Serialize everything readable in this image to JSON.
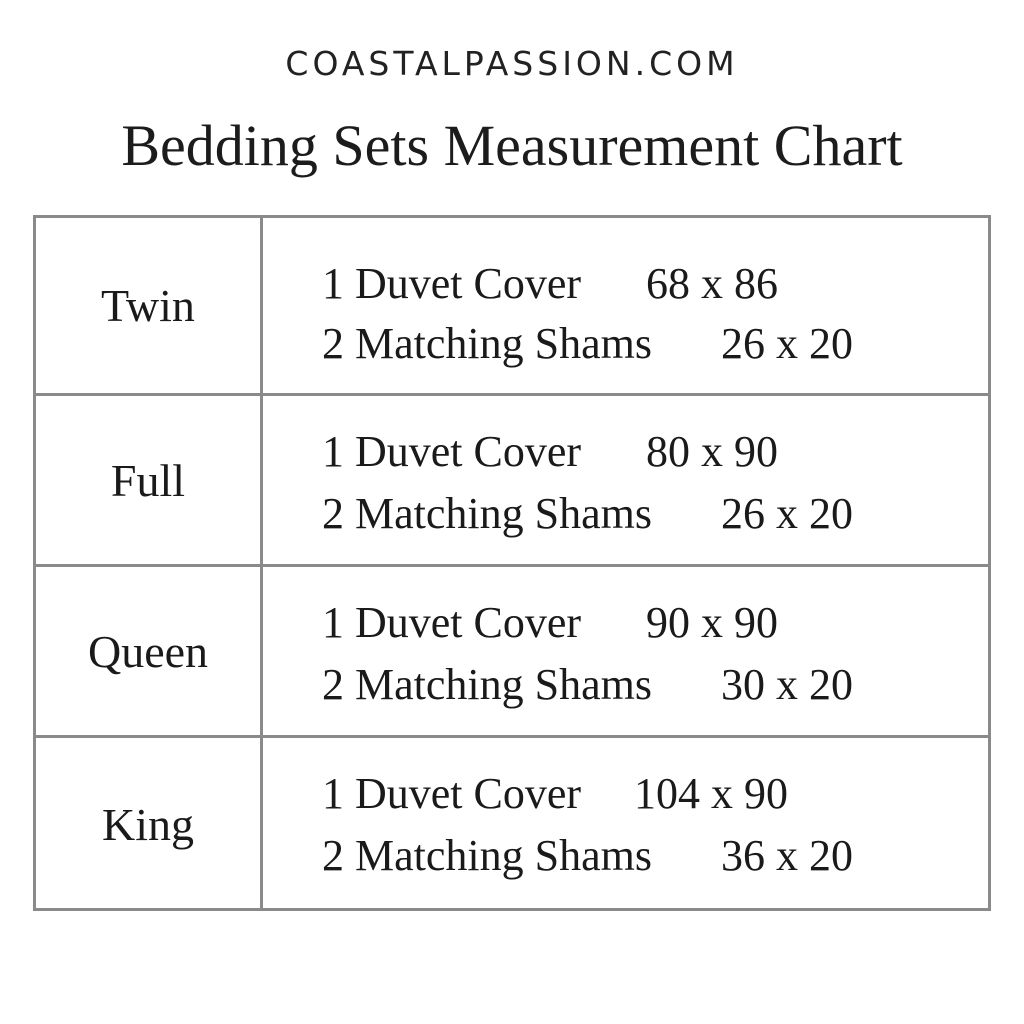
{
  "site": "COASTALPASSION.COM",
  "title": "Bedding Sets Measurement Chart",
  "rows": [
    {
      "size": "Twin",
      "duvet_label": "1 Duvet Cover",
      "duvet_dim": "68 x 86",
      "shams_label": "2 Matching Shams",
      "shams_dim": "26 x 20"
    },
    {
      "size": "Full",
      "duvet_label": "1 Duvet Cover",
      "duvet_dim": "80 x 90",
      "shams_label": "2 Matching Shams",
      "shams_dim": "26 x 20"
    },
    {
      "size": "Queen",
      "duvet_label": "1 Duvet Cover",
      "duvet_dim": "90 x 90",
      "shams_label": "2 Matching Shams",
      "shams_dim": "30 x 20"
    },
    {
      "size": "King",
      "duvet_label": "1 Duvet Cover",
      "duvet_dim": "104 x 90",
      "shams_label": "2 Matching Shams",
      "shams_dim": "36 x 20"
    }
  ]
}
